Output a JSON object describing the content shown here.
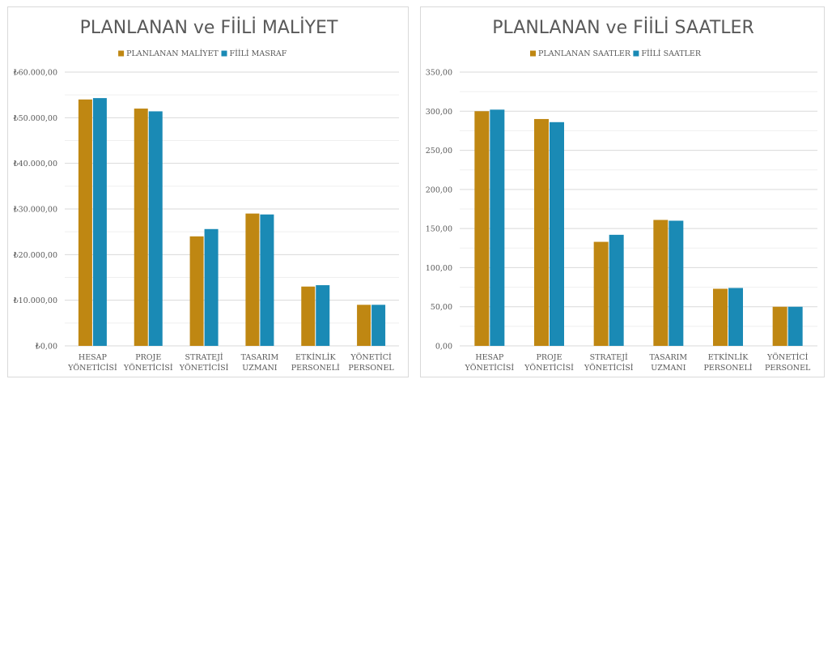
{
  "chart_data": [
    {
      "type": "bar",
      "title": "PLANLANAN ve FİİLİ MALİYET",
      "categories": [
        [
          "HESAP",
          "YÖNETİCİSİ"
        ],
        [
          "PROJE",
          "YÖNETİCİSİ"
        ],
        [
          "STRATEJİ",
          "YÖNETİCİSİ"
        ],
        [
          "TASARIM",
          "UZMANI"
        ],
        [
          "ETKİNLİK",
          "PERSONELİ"
        ],
        [
          "YÖNETİCİ",
          "PERSONEL"
        ]
      ],
      "series": [
        {
          "name": "PLANLANAN MALİYET",
          "color": "#bf8712",
          "values": [
            54000,
            52000,
            24000,
            29000,
            13000,
            9000
          ]
        },
        {
          "name": "FİİLİ MASRAF",
          "color": "#1a8ab5",
          "values": [
            54300,
            51400,
            25600,
            28800,
            13300,
            9000
          ]
        }
      ],
      "ylim": [
        0,
        60000
      ],
      "yticks": [
        {
          "value": 0,
          "label": "₺0,00"
        },
        {
          "value": 10000,
          "label": "₺10.000,00"
        },
        {
          "value": 20000,
          "label": "₺20.000,00"
        },
        {
          "value": 30000,
          "label": "₺30.000,00"
        },
        {
          "value": 40000,
          "label": "₺40.000,00"
        },
        {
          "value": 50000,
          "label": "₺50.000,00"
        },
        {
          "value": 60000,
          "label": "₺60.000,00"
        }
      ],
      "legend": "top",
      "grid": true
    },
    {
      "type": "bar",
      "title": "PLANLANAN ve FİİLİ SAATLER",
      "categories": [
        [
          "HESAP",
          "YÖNETİCİSİ"
        ],
        [
          "PROJE",
          "YÖNETİCİSİ"
        ],
        [
          "STRATEJİ",
          "YÖNETİCİSİ"
        ],
        [
          "TASARIM",
          "UZMANI"
        ],
        [
          "ETKİNLİK",
          "PERSONELİ"
        ],
        [
          "YÖNETİCİ",
          "PERSONEL"
        ]
      ],
      "series": [
        {
          "name": "PLANLANAN SAATLER",
          "color": "#bf8712",
          "values": [
            300,
            290,
            133,
            161,
            73,
            50
          ]
        },
        {
          "name": "FİİLİ SAATLER",
          "color": "#1a8ab5",
          "values": [
            302,
            286,
            142,
            160,
            74,
            50
          ]
        }
      ],
      "ylim": [
        0,
        350
      ],
      "yticks": [
        {
          "value": 0,
          "label": "0,00"
        },
        {
          "value": 50,
          "label": "50,00"
        },
        {
          "value": 100,
          "label": "100,00"
        },
        {
          "value": 150,
          "label": "150,00"
        },
        {
          "value": 200,
          "label": "200,00"
        },
        {
          "value": 250,
          "label": "250,00"
        },
        {
          "value": 300,
          "label": "300,00"
        },
        {
          "value": 350,
          "label": "350,00"
        }
      ],
      "legend": "top",
      "grid": true
    }
  ]
}
